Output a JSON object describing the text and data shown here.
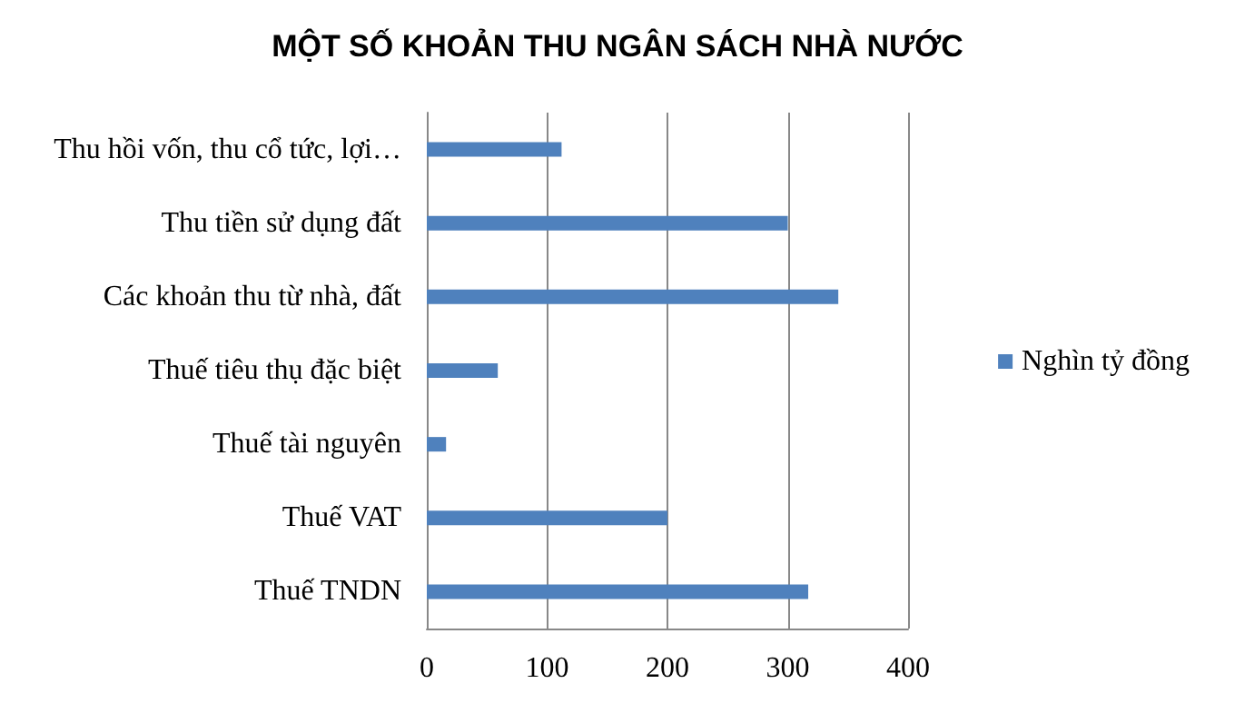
{
  "chart_data": {
    "type": "bar",
    "orientation": "horizontal",
    "title": "MỘT SỐ KHOẢN THU NGÂN SÁCH NHÀ NƯỚC",
    "categories": [
      "Thu hồi vốn, thu cổ tức, lợi…",
      "Thu tiền sử dụng đất",
      "Các khoản thu từ nhà, đất",
      "Thuế tiêu thụ đặc biệt",
      "Thuế tài nguyên",
      "Thuế VAT",
      "Thuế TNDN"
    ],
    "series": [
      {
        "name": "Nghìn tỷ đồng",
        "color": "#4f81bd",
        "values": [
          112,
          300,
          342,
          59,
          16,
          200,
          317
        ]
      }
    ],
    "xlim": [
      0,
      400
    ],
    "xticks": [
      0,
      100,
      200,
      300,
      400
    ],
    "grid": "x",
    "legend": "right"
  }
}
